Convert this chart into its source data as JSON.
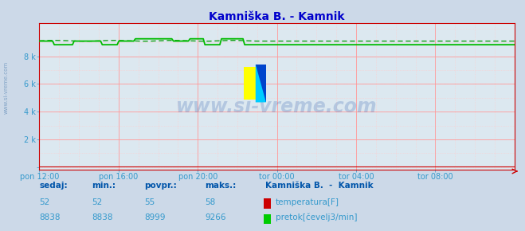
{
  "title": "Kamniška B. - Kamnik",
  "title_color": "#0000cc",
  "bg_color": "#ccd9e8",
  "plot_bg_color": "#dce8f0",
  "grid_major_color": "#ff9999",
  "grid_minor_color": "#ffcccc",
  "spine_color": "#cc0000",
  "x_labels": [
    "pon 12:00",
    "pon 16:00",
    "pon 20:00",
    "tor 00:00",
    "tor 04:00",
    "tor 08:00"
  ],
  "y_tick_labels": [
    "",
    "2 k",
    "4 k",
    "6 k",
    "8 k"
  ],
  "y_ticks": [
    0,
    2000,
    4000,
    6000,
    8000
  ],
  "ymin": -200,
  "ymax": 10400,
  "tick_color": "#3399cc",
  "label_color": "#3399cc",
  "temp_color": "#cc0000",
  "flow_color": "#00bb00",
  "flow_dashed_color": "#009900",
  "watermark_text": "www.si-vreme.com",
  "watermark_color": "#2255aa",
  "watermark_alpha": 0.22,
  "side_text": "www.si-vreme.com",
  "side_color": "#4477aa",
  "sedaj_label": "sedaj:",
  "min_label": "min.:",
  "povpr_label": "povpr.:",
  "maks_label": "maks.:",
  "station_label": "Kamniška B.  -  Kamnik",
  "temp_legend_label": "temperatura[F]",
  "flow_legend_label": "pretok[čevelj3/min]",
  "temp_sedaj": 52,
  "temp_min": 52,
  "temp_povpr": 55,
  "temp_maks": 58,
  "flow_sedaj": 8838,
  "flow_min": 8838,
  "flow_povpr": 8999,
  "flow_maks": 9266,
  "header_color": "#0000cc",
  "stats_bold_color": "#0055aa",
  "stats_num_color": "#3399cc",
  "n_points": 288
}
